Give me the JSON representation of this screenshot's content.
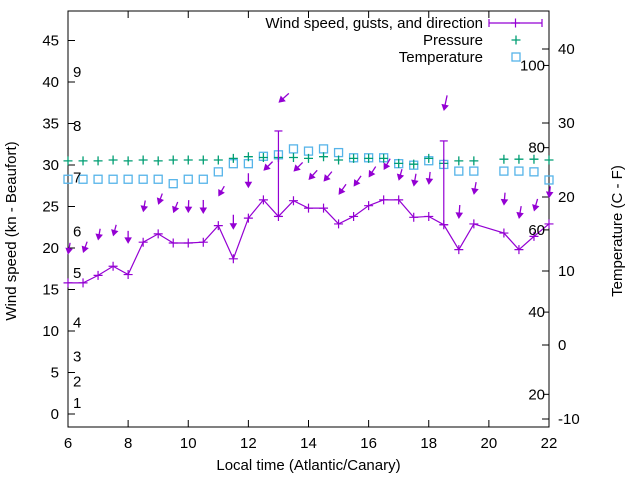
{
  "chart_data": {
    "type": "line",
    "xlabel": "Local time (Atlantic/Canary)",
    "ylabel_left": "Wind speed (kn - Beaufort)",
    "ylabel_right": "Temperature (C - F)",
    "x_range": [
      6,
      22
    ],
    "x_ticks": [
      6,
      8,
      10,
      12,
      14,
      16,
      18,
      20,
      22
    ],
    "y_left_ticks_kn": [
      0,
      5,
      10,
      15,
      20,
      25,
      30,
      35,
      40,
      45
    ],
    "y_right_ticks_c": [
      -10,
      0,
      10,
      20,
      30,
      40
    ],
    "beaufort_labels": [
      {
        "label": "1",
        "kn": 1.3
      },
      {
        "label": "2",
        "kn": 3.9
      },
      {
        "label": "3",
        "kn": 6.9
      },
      {
        "label": "4",
        "kn": 11.0
      },
      {
        "label": "5",
        "kn": 17.0
      },
      {
        "label": "6",
        "kn": 22.0
      },
      {
        "label": "7",
        "kn": 28.5
      },
      {
        "label": "8",
        "kn": 34.7
      },
      {
        "label": "9",
        "kn": 41.2
      }
    ],
    "fahrenheit_labels": [
      20,
      40,
      60,
      80,
      100
    ],
    "colors": {
      "wind": "#9400d3",
      "pressure": "#009e73",
      "temperature": "#56b4e9",
      "axis": "#000000",
      "background": "#ffffff"
    },
    "legend": [
      {
        "label": "Wind speed, gusts, and direction",
        "marker": "errorbar-line",
        "color": "#9400d3"
      },
      {
        "label": "Pressure",
        "marker": "plus",
        "color": "#009e73"
      },
      {
        "label": "Temperature",
        "marker": "open-square",
        "color": "#56b4e9"
      }
    ],
    "series": {
      "wind_kn": [
        [
          6,
          15.8
        ],
        [
          6.5,
          15.8
        ],
        [
          7,
          16.7
        ],
        [
          7.5,
          17.8
        ],
        [
          8,
          16.8
        ],
        [
          8.5,
          20.7
        ],
        [
          9,
          21.7
        ],
        [
          9.5,
          20.6
        ],
        [
          10,
          20.6
        ],
        [
          10.5,
          20.7
        ],
        [
          11,
          22.7
        ],
        [
          11.5,
          18.7
        ],
        [
          12,
          23.6
        ],
        [
          12.5,
          25.8
        ],
        [
          13,
          23.8
        ],
        [
          13.5,
          25.7
        ],
        [
          14,
          24.8
        ],
        [
          14.5,
          24.8
        ],
        [
          15,
          22.9
        ],
        [
          15.5,
          23.8
        ],
        [
          16,
          25.1
        ],
        [
          16.5,
          25.8
        ],
        [
          17,
          25.8
        ],
        [
          17.5,
          23.7
        ],
        [
          18,
          23.8
        ],
        [
          18.5,
          22.8
        ],
        [
          19,
          19.8
        ],
        [
          19.5,
          22.9
        ],
        [
          20.5,
          21.8
        ],
        [
          21,
          19.8
        ],
        [
          21.5,
          21.4
        ],
        [
          22,
          22.9
        ]
      ],
      "wind_gusts_kn": [
        [
          13,
          34.1
        ],
        [
          18.5,
          32.9
        ]
      ],
      "wind_direction_arrows": [
        [
          6,
          19.2,
          190,
          12
        ],
        [
          6.5,
          19.4,
          200,
          12
        ],
        [
          7,
          20.9,
          190,
          12
        ],
        [
          7.5,
          21.4,
          195,
          12
        ],
        [
          8,
          20.5,
          180,
          13
        ],
        [
          8.5,
          24.3,
          190,
          12
        ],
        [
          9,
          25.2,
          200,
          12
        ],
        [
          9.5,
          24.2,
          202,
          12
        ],
        [
          10,
          24.2,
          182,
          13
        ],
        [
          10.5,
          24.1,
          180,
          14
        ],
        [
          11,
          26.2,
          210,
          12
        ],
        [
          11.5,
          22.2,
          180,
          15
        ],
        [
          12,
          27.2,
          180,
          15
        ],
        [
          12.5,
          29.3,
          225,
          13
        ],
        [
          13,
          37.5,
          228,
          14
        ],
        [
          13.5,
          29.2,
          225,
          13
        ],
        [
          14,
          28.2,
          222,
          13
        ],
        [
          14.5,
          28.0,
          220,
          13
        ],
        [
          15,
          26.4,
          215,
          13
        ],
        [
          15.5,
          27.4,
          215,
          13
        ],
        [
          16,
          28.5,
          213,
          13
        ],
        [
          16.5,
          29.4,
          210,
          13
        ],
        [
          17,
          28.1,
          196,
          12
        ],
        [
          17.5,
          27.4,
          190,
          13
        ],
        [
          18,
          27.6,
          186,
          13
        ],
        [
          18.5,
          36.5,
          192,
          16
        ],
        [
          19,
          23.5,
          184,
          14
        ],
        [
          19.5,
          26.4,
          190,
          13
        ],
        [
          20.5,
          25.1,
          185,
          13
        ],
        [
          21,
          23.5,
          190,
          13
        ],
        [
          21.5,
          24.4,
          196,
          13
        ],
        [
          22,
          26.0,
          186,
          12
        ]
      ],
      "pressure_plotted_kn": [
        [
          6,
          30.5
        ],
        [
          6.5,
          30.5
        ],
        [
          7,
          30.5
        ],
        [
          7.5,
          30.6
        ],
        [
          8,
          30.5
        ],
        [
          8.5,
          30.6
        ],
        [
          9,
          30.5
        ],
        [
          9.5,
          30.6
        ],
        [
          10,
          30.6
        ],
        [
          10.5,
          30.6
        ],
        [
          11,
          30.6
        ],
        [
          11.5,
          30.8
        ],
        [
          12,
          31.0
        ],
        [
          12.5,
          30.9
        ],
        [
          13,
          30.9
        ],
        [
          13.5,
          30.9
        ],
        [
          14,
          30.8
        ],
        [
          14.5,
          31.0
        ],
        [
          15,
          30.6
        ],
        [
          15.5,
          30.8
        ],
        [
          16,
          30.8
        ],
        [
          16.5,
          30.8
        ],
        [
          17,
          30.2
        ],
        [
          17.5,
          30.1
        ],
        [
          18,
          30.8
        ],
        [
          18.5,
          30.2
        ],
        [
          19,
          30.5
        ],
        [
          19.5,
          30.5
        ],
        [
          20.5,
          30.7
        ],
        [
          21,
          30.7
        ],
        [
          21.5,
          30.7
        ],
        [
          22,
          30.6
        ]
      ],
      "temperature_c": [
        [
          6,
          22.4
        ],
        [
          6.5,
          22.4
        ],
        [
          7,
          22.4
        ],
        [
          7.5,
          22.4
        ],
        [
          8,
          22.4
        ],
        [
          8.5,
          22.4
        ],
        [
          9,
          22.4
        ],
        [
          9.5,
          21.8
        ],
        [
          10,
          22.4
        ],
        [
          10.5,
          22.4
        ],
        [
          11,
          23.4
        ],
        [
          11.5,
          24.5
        ],
        [
          12,
          24.5
        ],
        [
          12.5,
          25.5
        ],
        [
          13,
          25.7
        ],
        [
          13.5,
          26.5
        ],
        [
          14,
          26.2
        ],
        [
          14.5,
          26.5
        ],
        [
          15,
          26.0
        ],
        [
          15.5,
          25.3
        ],
        [
          16,
          25.3
        ],
        [
          16.5,
          25.3
        ],
        [
          17,
          24.5
        ],
        [
          17.5,
          24.3
        ],
        [
          18,
          24.9
        ],
        [
          18.5,
          24.4
        ],
        [
          19,
          23.5
        ],
        [
          19.5,
          23.5
        ],
        [
          20.5,
          23.5
        ],
        [
          21,
          23.5
        ],
        [
          21.5,
          23.4
        ],
        [
          22,
          22.3
        ]
      ]
    }
  }
}
